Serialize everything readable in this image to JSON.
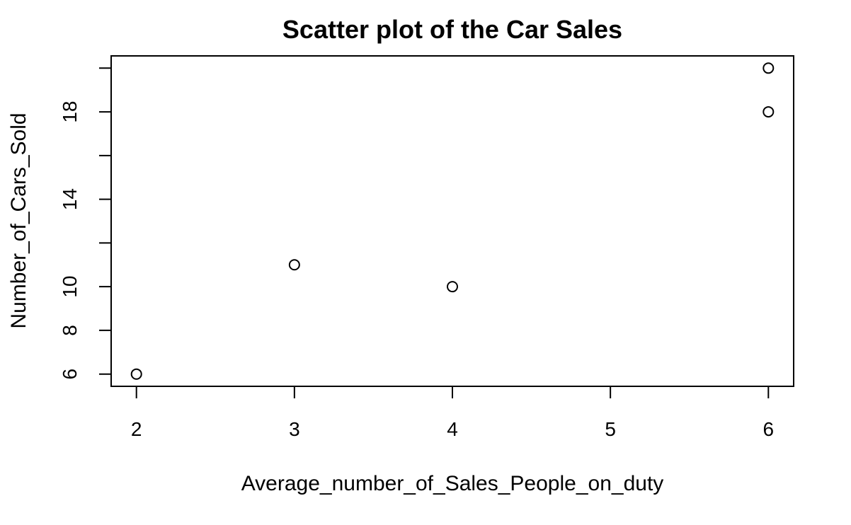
{
  "chart_data": {
    "type": "scatter",
    "title": "Scatter plot of the Car Sales",
    "xlabel": "Average_number_of_Sales_People_on_duty",
    "ylabel": "Number_of_Cars_Sold",
    "xlim": [
      1.84,
      6.16
    ],
    "ylim": [
      5.44,
      20.56
    ],
    "x_ticks": [
      2,
      3,
      4,
      5,
      6
    ],
    "y_ticks": [
      6,
      8,
      10,
      12,
      14,
      16,
      18,
      20
    ],
    "y_tick_labels": [
      "6",
      "8",
      "10",
      "",
      "14",
      "",
      "18",
      ""
    ],
    "grid": false,
    "legend": "none",
    "marker": "open-circle",
    "colors": {
      "marker": "#000000",
      "axis": "#000000",
      "background": "#ffffff"
    },
    "points": [
      {
        "x": 2,
        "y": 6
      },
      {
        "x": 3,
        "y": 11
      },
      {
        "x": 4,
        "y": 10
      },
      {
        "x": 6,
        "y": 18
      },
      {
        "x": 6,
        "y": 20
      }
    ]
  }
}
